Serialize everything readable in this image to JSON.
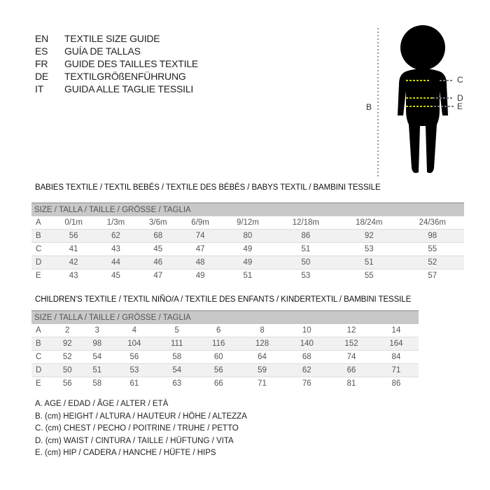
{
  "languages": [
    {
      "code": "EN",
      "text": "TEXTILE SIZE GUIDE"
    },
    {
      "code": "ES",
      "text": "GUÍA DE TALLAS"
    },
    {
      "code": "FR",
      "text": "GUIDE DES TAILLES TEXTILE"
    },
    {
      "code": "DE",
      "text": "TEXTILGRÖßENFÜHRUNG"
    },
    {
      "code": "IT",
      "text": "GUIDA ALLE TAGLIE TESSILI"
    }
  ],
  "figure": {
    "labels": {
      "b": "B",
      "c": "C",
      "d": "D",
      "e": "E"
    },
    "measure_line_color": "#c8d400"
  },
  "babies": {
    "title": "BABIES TEXTILE / TEXTIL BEBÉS / TEXTILE DES BÉBÉS / BABYS TEXTIL  / BAMBINI TESSILE",
    "header": "SIZE / TALLA / TAILLE / GRÖSSE / TAGLIA",
    "rows": [
      {
        "label": "A",
        "values": [
          "0/1m",
          "1/3m",
          "3/6m",
          "6/9m",
          "9/12m",
          "12/18m",
          "18/24m",
          "24/36m"
        ]
      },
      {
        "label": "B",
        "values": [
          "56",
          "62",
          "68",
          "74",
          "80",
          "86",
          "92",
          "98"
        ]
      },
      {
        "label": "C",
        "values": [
          "41",
          "43",
          "45",
          "47",
          "49",
          "51",
          "53",
          "55"
        ]
      },
      {
        "label": "D",
        "values": [
          "42",
          "44",
          "46",
          "48",
          "49",
          "50",
          "51",
          "52"
        ]
      },
      {
        "label": "E",
        "values": [
          "43",
          "45",
          "47",
          "49",
          "51",
          "53",
          "55",
          "57"
        ]
      }
    ]
  },
  "children": {
    "title": "CHILDREN'S TEXTILE / TEXTIL NIÑO/A / TEXTILE DES ENFANTS / KINDERTEXTIL / BAMBINI TESSILE",
    "header": "SIZE / TALLA / TAILLE / GRÖSSE / TAGLIA",
    "rows": [
      {
        "label": "A",
        "values": [
          "2",
          "3",
          "4",
          "5",
          "6",
          "8",
          "10",
          "12",
          "14"
        ]
      },
      {
        "label": "B",
        "values": [
          "92",
          "98",
          "104",
          "111",
          "116",
          "128",
          "140",
          "152",
          "164"
        ]
      },
      {
        "label": "C",
        "values": [
          "52",
          "54",
          "56",
          "58",
          "60",
          "64",
          "68",
          "74",
          "84"
        ]
      },
      {
        "label": "D",
        "values": [
          "50",
          "51",
          "53",
          "54",
          "56",
          "59",
          "62",
          "66",
          "71"
        ]
      },
      {
        "label": "E",
        "values": [
          "56",
          "58",
          "61",
          "63",
          "66",
          "71",
          "76",
          "81",
          "86"
        ]
      }
    ]
  },
  "legend": [
    "A. AGE / EDAD / ÂGE / ALTER / ETÀ",
    "B. (cm) HEIGHT / ALTURA / HAUTEUR / HÖHE / ALTEZZA",
    "C. (cm) CHEST / PECHO / POITRINE / TRUHE / PETTO",
    "D. (cm) WAIST / CINTURA / TAILLE / HÜFTUNG / VITA",
    "E. (cm) HIP / CADERA / HANCHE / HÜFTE / HIPS"
  ]
}
